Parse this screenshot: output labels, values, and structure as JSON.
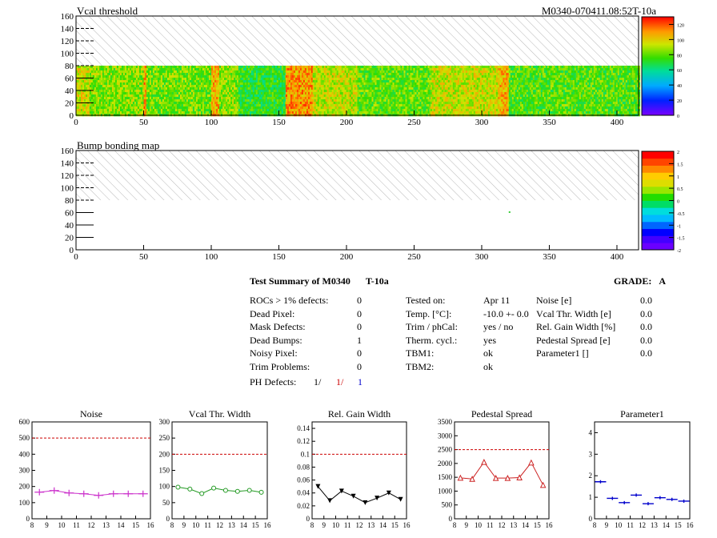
{
  "header": {
    "map1_title": "Vcal threshold",
    "module_label": "M0340-070411.08:52T-10a",
    "map2_title": "Bump bonding map"
  },
  "maps": {
    "x_ticks": [
      0,
      50,
      100,
      150,
      200,
      250,
      300,
      350,
      400
    ],
    "y_ticks": [
      0,
      20,
      40,
      60,
      80,
      100,
      120,
      140,
      160
    ],
    "x_range": [
      0,
      416
    ],
    "y_range": [
      0,
      160
    ],
    "filled_rows": [
      0,
      80
    ],
    "colorbar1_ticks": [
      0,
      20,
      40,
      60,
      80,
      100,
      120
    ],
    "colorbar1_range": [
      0,
      130
    ],
    "colorbar2_ticks": [
      "-2",
      "-1.5",
      "-1",
      "-0.5",
      "0",
      "0.5",
      "1",
      "1.5",
      "2"
    ],
    "colorbar2_range": [
      -2,
      2
    ]
  },
  "summary": {
    "title": "Test Summary of M0340",
    "temp_tag": "T-10a",
    "grade_label": "GRADE:",
    "grade_value": "A",
    "left": [
      {
        "label": "ROCs > 1% defects:",
        "value": "0"
      },
      {
        "label": "Dead Pixel:",
        "value": "0"
      },
      {
        "label": "Mask Defects:",
        "value": "0"
      },
      {
        "label": "Dead Bumps:",
        "value": "1"
      },
      {
        "label": "Noisy Pixel:",
        "value": "0"
      },
      {
        "label": "Trim Problems:",
        "value": "0"
      }
    ],
    "ph_label": "PH Defects:",
    "ph_values": [
      "1/",
      "1/",
      "1"
    ],
    "ph_colors": [
      "#000000",
      "#cc0000",
      "#0000cc"
    ],
    "middle": [
      {
        "label": "Tested on:",
        "value": "Apr 11"
      },
      {
        "label": "Temp. [°C]:",
        "value": "-10.0 +- 0.0"
      },
      {
        "label": "Trim / phCal:",
        "value": "yes / no"
      },
      {
        "label": "Therm. cycl.:",
        "value": "yes"
      },
      {
        "label": "TBM1:",
        "value": "ok"
      },
      {
        "label": "TBM2:",
        "value": "ok"
      }
    ],
    "right": [
      {
        "label": "Noise [e]",
        "value": "0.0"
      },
      {
        "label": "Vcal Thr. Width [e]",
        "value": "0.0"
      },
      {
        "label": "Rel. Gain Width [%]",
        "value": "0.0"
      },
      {
        "label": "Pedestal Spread [e]",
        "value": "0.0"
      },
      {
        "label": "Parameter1 []",
        "value": "0.0"
      }
    ]
  },
  "chart_data": [
    {
      "type": "heatmap",
      "title": "Vcal threshold",
      "annotation": "M0340-070411.08:52T-10a",
      "xlim": [
        0,
        416
      ],
      "ylim": [
        0,
        160
      ],
      "zlim": [
        0,
        130
      ],
      "filled_y_range": [
        0,
        80
      ],
      "hatched_y_range": [
        80,
        160
      ],
      "column_means": [
        {
          "x": [
            0,
            10
          ],
          "z": 95
        },
        {
          "x": [
            10,
            50
          ],
          "z": 85
        },
        {
          "x": [
            50,
            52
          ],
          "z": 110
        },
        {
          "x": [
            52,
            100
          ],
          "z": 82
        },
        {
          "x": [
            100,
            106
          ],
          "z": 105
        },
        {
          "x": [
            106,
            120
          ],
          "z": 85
        },
        {
          "x": [
            120,
            155
          ],
          "z": 72
        },
        {
          "x": [
            155,
            175
          ],
          "z": 110
        },
        {
          "x": [
            175,
            208
          ],
          "z": 92
        },
        {
          "x": [
            208,
            262
          ],
          "z": 80
        },
        {
          "x": [
            262,
            312
          ],
          "z": 93
        },
        {
          "x": [
            312,
            320
          ],
          "z": 105
        },
        {
          "x": [
            320,
            416
          ],
          "z": 78
        }
      ]
    },
    {
      "type": "heatmap",
      "title": "Bump bonding map",
      "xlim": [
        0,
        416
      ],
      "ylim": [
        0,
        160
      ],
      "zlim": [
        -2,
        2
      ],
      "filled_y_range": [
        0,
        80
      ],
      "hatched_y_range": [
        80,
        160
      ],
      "points": [
        {
          "x": 320,
          "y": 62,
          "z": 0
        }
      ]
    },
    {
      "type": "line",
      "title": "Noise",
      "color": "#cc33cc",
      "marker": "cross",
      "x": [
        8.5,
        9.5,
        10.5,
        11.5,
        12.5,
        13.5,
        14.5,
        15.5
      ],
      "values": [
        165,
        175,
        160,
        155,
        145,
        155,
        155,
        155
      ],
      "xlim": [
        8,
        16
      ],
      "ylim": [
        0,
        600
      ],
      "yticks": [
        0,
        100,
        200,
        300,
        400,
        500,
        600
      ],
      "threshold": 500
    },
    {
      "type": "line",
      "title": "Vcal Thr. Width",
      "color": "#229922",
      "marker": "circle",
      "x": [
        8.5,
        9.5,
        10.5,
        11.5,
        12.5,
        13.5,
        14.5,
        15.5
      ],
      "values": [
        98,
        92,
        78,
        95,
        88,
        85,
        88,
        82
      ],
      "xlim": [
        8,
        16
      ],
      "ylim": [
        0,
        300
      ],
      "yticks": [
        0,
        50,
        100,
        150,
        200,
        250,
        300
      ],
      "threshold": 200
    },
    {
      "type": "line",
      "title": "Rel. Gain Width",
      "color": "#000000",
      "marker": "down-triangle",
      "x": [
        8.5,
        9.5,
        10.5,
        11.5,
        12.5,
        13.5,
        14.5,
        15.5
      ],
      "values": [
        0.05,
        0.028,
        0.043,
        0.035,
        0.025,
        0.032,
        0.04,
        0.03
      ],
      "xlim": [
        8,
        16
      ],
      "ylim": [
        0,
        0.15
      ],
      "yticks": [
        0,
        0.02,
        0.04,
        0.06,
        0.08,
        0.1,
        0.12,
        0.14
      ],
      "threshold": 0.1
    },
    {
      "type": "line",
      "title": "Pedestal Spread",
      "color": "#cc2222",
      "marker": "up-triangle",
      "x": [
        8.5,
        9.5,
        10.5,
        11.5,
        12.5,
        13.5,
        14.5,
        15.5
      ],
      "values": [
        1480,
        1440,
        2050,
        1470,
        1470,
        1490,
        2030,
        1220
      ],
      "xlim": [
        8,
        16
      ],
      "ylim": [
        0,
        3500
      ],
      "yticks": [
        0,
        500,
        1000,
        1500,
        2000,
        2500,
        3000,
        3500
      ],
      "threshold": 2500
    },
    {
      "type": "scatter",
      "title": "Parameter1",
      "color": "#0000cc",
      "marker": "bar",
      "x": [
        8.5,
        9.5,
        10.5,
        11.5,
        12.5,
        13.5,
        14.5,
        15.5
      ],
      "values": [
        1.72,
        0.95,
        0.75,
        1.1,
        0.7,
        0.98,
        0.9,
        0.82
      ],
      "xlim": [
        8,
        16
      ],
      "ylim": [
        0,
        4.5
      ],
      "yticks": [
        0,
        1,
        2,
        3,
        4
      ]
    }
  ]
}
